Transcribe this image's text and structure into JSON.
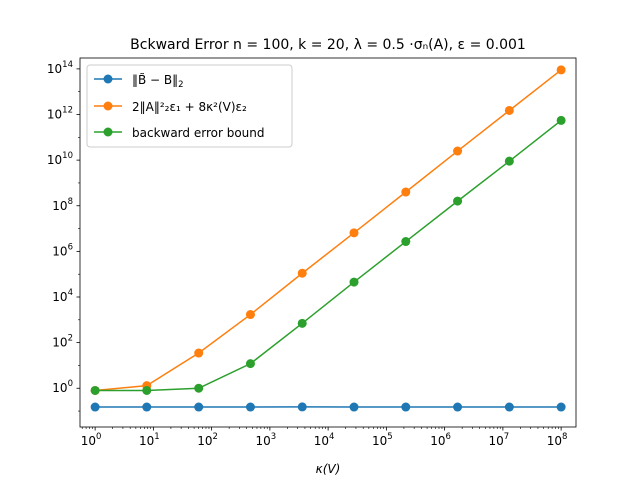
{
  "chart_data": {
    "type": "line",
    "title": "Bckward Error n = 100, k = 20, λ = 0.5 ·σₙ(A), ε = 0.001",
    "xlabel": "κ(V)",
    "ylabel": "",
    "x_scale": "log",
    "y_scale": "log",
    "xlim": [
      0.55,
      180000000
    ],
    "ylim": [
      0.02,
      300000000000000
    ],
    "grid": false,
    "legend_position": "upper-left",
    "x_ticks": [
      {
        "base": "10",
        "exp": "0",
        "value": 1
      },
      {
        "base": "10",
        "exp": "1",
        "value": 10
      },
      {
        "base": "10",
        "exp": "2",
        "value": 100
      },
      {
        "base": "10",
        "exp": "3",
        "value": 1000
      },
      {
        "base": "10",
        "exp": "4",
        "value": 10000
      },
      {
        "base": "10",
        "exp": "5",
        "value": 100000
      },
      {
        "base": "10",
        "exp": "6",
        "value": 1000000
      },
      {
        "base": "10",
        "exp": "7",
        "value": 10000000
      },
      {
        "base": "10",
        "exp": "8",
        "value": 100000000
      }
    ],
    "y_ticks": [
      {
        "base": "10",
        "exp": "0",
        "value": 1
      },
      {
        "base": "10",
        "exp": "2",
        "value": 100
      },
      {
        "base": "10",
        "exp": "4",
        "value": 10000
      },
      {
        "base": "10",
        "exp": "6",
        "value": 1000000
      },
      {
        "base": "10",
        "exp": "8",
        "value": 100000000
      },
      {
        "base": "10",
        "exp": "10",
        "value": 10000000000
      },
      {
        "base": "10",
        "exp": "12",
        "value": 1000000000000
      },
      {
        "base": "10",
        "exp": "14",
        "value": 100000000000000
      }
    ],
    "x": [
      1,
      7.7,
      60,
      464,
      3594,
      27826,
      215443,
      1668100,
      12915000,
      100000000
    ],
    "series": [
      {
        "name": "‖B̃ − B‖₂",
        "legend": {
          "text": "‖B̃ − B‖",
          "sub": "2"
        },
        "color": "#1f77b4",
        "values": [
          0.15,
          0.15,
          0.15,
          0.15,
          0.152,
          0.15,
          0.15,
          0.15,
          0.15,
          0.15
        ]
      },
      {
        "name": "2‖A‖₂²ε₁ + 8κ²(V)ε₂",
        "legend": {
          "text": "2‖A‖²₂ε₁ + 8κ²(V)ε₂"
        },
        "color": "#ff7f0e",
        "values": [
          0.8,
          1.3,
          35,
          1700,
          110000,
          6500000,
          400000000,
          25000000000,
          1500000000000,
          90000000000000
        ]
      },
      {
        "name": "backward error bound",
        "legend": {
          "text": "backward error bound"
        },
        "color": "#2ca02c",
        "values": [
          0.8,
          0.8,
          1.0,
          12,
          700,
          45000,
          2700000,
          160000000,
          9000000000,
          550000000000
        ]
      }
    ]
  }
}
